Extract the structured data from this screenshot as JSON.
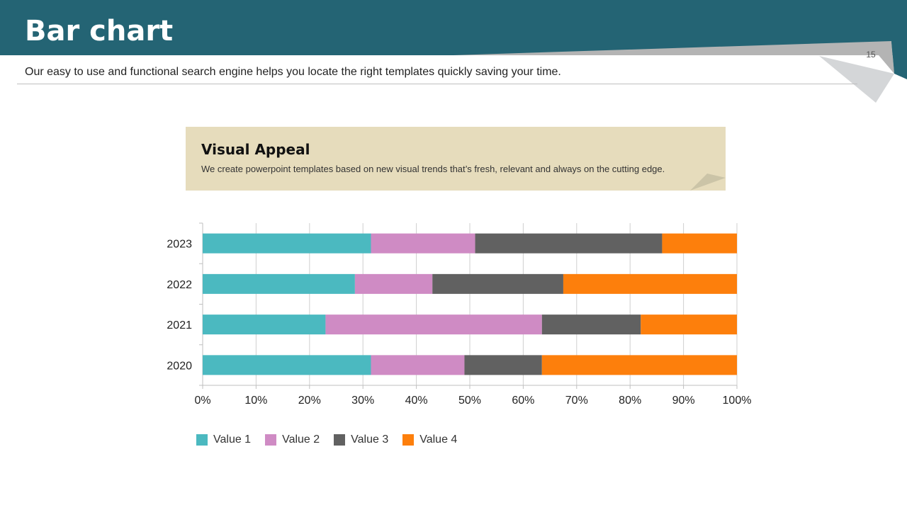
{
  "header": {
    "title": "Bar chart",
    "page_number": "15",
    "subtitle": "Our easy to use and functional search engine helps you locate the right templates quickly saving your time.",
    "colors": {
      "header": "#246474",
      "ribbon": "#b4b4b4",
      "ribbon_fold": "#d4d6d8"
    }
  },
  "callout": {
    "title": "Visual Appeal",
    "text": "We create powerpoint templates based on new visual trends that’s fresh, relevant and always on the cutting edge.",
    "colors": {
      "background": "#e6dcbc",
      "fold": "#cbc4a7"
    }
  },
  "chart_data": {
    "type": "bar",
    "orientation": "horizontal",
    "stacked": "percent",
    "categories": [
      "2020",
      "2021",
      "2022",
      "2023"
    ],
    "xlim": [
      0,
      100
    ],
    "xticks": [
      "0%",
      "10%",
      "20%",
      "30%",
      "40%",
      "50%",
      "60%",
      "70%",
      "80%",
      "90%",
      "100%"
    ],
    "grid": true,
    "legend_position": "bottom-left",
    "series": [
      {
        "name": "Value 1",
        "color": "#4bb9c0",
        "values": [
          31.5,
          23.0,
          28.5,
          31.5
        ]
      },
      {
        "name": "Value 2",
        "color": "#cf8bc4",
        "values": [
          17.5,
          40.5,
          14.5,
          19.5
        ]
      },
      {
        "name": "Value 3",
        "color": "#616161",
        "values": [
          14.5,
          18.5,
          24.5,
          35.0
        ]
      },
      {
        "name": "Value 4",
        "color": "#fd7f0c",
        "values": [
          36.5,
          18.0,
          32.5,
          14.0
        ]
      }
    ]
  }
}
